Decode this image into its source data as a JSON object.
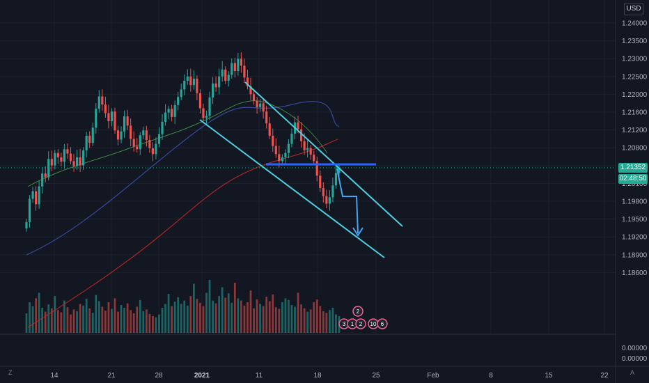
{
  "header": {
    "currency": "USD"
  },
  "price_panel": {
    "last_price": "1.21352",
    "countdown": "02:48:50",
    "indicator_ticks": [
      "0.00000",
      "0.00000"
    ]
  },
  "corner_labels": {
    "left": "Z",
    "right": "A"
  },
  "event_badges": {
    "top": "2",
    "a": "3",
    "b": "1",
    "c": "2",
    "d": "10",
    "e": "6"
  },
  "colors": {
    "background": "#131722",
    "up_candle": "#26a69a",
    "down_candle": "#ef5350",
    "channel_lines": "#4dd0e1",
    "level_line": "#2962ff",
    "projection_arrow": "#42a5f5",
    "ma_fast": "#4caf50",
    "ma_mid": "#3f51b5",
    "ma_slow": "#c62828",
    "price_tag": "#22ab94"
  },
  "chart_data": {
    "type": "candlestick",
    "instrument_quote_currency": "USD",
    "y_axis": {
      "ticks": [
        "1.24000",
        "1.23500",
        "1.23000",
        "1.22500",
        "1.22000",
        "1.21600",
        "1.21200",
        "1.20800",
        "1.20400",
        "1.20100",
        "1.19800",
        "1.19500",
        "1.19200",
        "1.18900",
        "1.18600"
      ]
    },
    "x_axis": {
      "ticks": [
        {
          "label": "14",
          "bold": false
        },
        {
          "label": "21",
          "bold": false
        },
        {
          "label": "28",
          "bold": false
        },
        {
          "label": "2021",
          "bold": true
        },
        {
          "label": "11",
          "bold": false
        },
        {
          "label": "18",
          "bold": false
        },
        {
          "label": "25",
          "bold": false
        },
        {
          "label": "Feb",
          "bold": false
        },
        {
          "label": "8",
          "bold": false
        },
        {
          "label": "15",
          "bold": false
        },
        {
          "label": "22",
          "bold": false
        }
      ]
    },
    "last_price": 1.21352,
    "candles_close_trend": [
      1.2035,
      1.2078,
      1.2092,
      1.2068,
      1.2101,
      1.2125,
      1.2118,
      1.2152,
      1.214,
      1.2163,
      1.2155,
      1.2147,
      1.217,
      1.2162,
      1.2148,
      1.2139,
      1.2155,
      1.214,
      1.2168,
      1.2195,
      1.2182,
      1.221,
      1.2245,
      1.2268,
      1.2253,
      1.2237,
      1.2222,
      1.224,
      1.2205,
      1.2188,
      1.2203,
      1.2231,
      1.2214,
      1.2189,
      1.2175,
      1.217,
      1.2196,
      1.2205,
      1.2187,
      1.2172,
      1.2161,
      1.218,
      1.2198,
      1.2221,
      1.2238,
      1.2245,
      1.223,
      1.2252,
      1.2267,
      1.2281,
      1.2297,
      1.2305,
      1.2289,
      1.2301,
      1.2274,
      1.2246,
      1.2228,
      1.2232,
      1.2266,
      1.2292,
      1.2285,
      1.2305,
      1.2318,
      1.2297,
      1.2308,
      1.233,
      1.2315,
      1.2338,
      1.2325,
      1.2303,
      1.2287,
      1.2272,
      1.226,
      1.2248,
      1.2255,
      1.224,
      1.2218,
      1.2195,
      1.2176,
      1.2161,
      1.2148,
      1.2155,
      1.2163,
      1.218,
      1.2199,
      1.222,
      1.2207,
      1.2185,
      1.2168,
      1.2172,
      1.216,
      1.2148,
      1.2121,
      1.2098,
      1.2083,
      1.2069,
      1.2081,
      1.2103,
      1.2126,
      1.2135
    ],
    "volume_relative": [
      0.35,
      0.55,
      0.48,
      0.62,
      0.72,
      0.45,
      0.38,
      0.51,
      0.44,
      0.66,
      0.41,
      0.37,
      0.58,
      0.46,
      0.33,
      0.42,
      0.39,
      0.52,
      0.49,
      0.61,
      0.44,
      0.36,
      0.68,
      0.57,
      0.47,
      0.4,
      0.55,
      0.43,
      0.62,
      0.38,
      0.5,
      0.45,
      0.53,
      0.41,
      0.35,
      0.47,
      0.59,
      0.39,
      0.42,
      0.34,
      0.3,
      0.28,
      0.33,
      0.45,
      0.52,
      0.7,
      0.48,
      0.56,
      0.64,
      0.52,
      0.58,
      0.49,
      0.66,
      0.88,
      0.61,
      0.54,
      0.48,
      0.72,
      0.95,
      0.58,
      0.53,
      0.66,
      0.82,
      0.63,
      0.71,
      0.54,
      0.9,
      0.62,
      0.58,
      0.49,
      0.55,
      0.76,
      0.44,
      0.6,
      0.52,
      0.48,
      0.65,
      0.57,
      0.69,
      0.46,
      0.43,
      0.55,
      0.62,
      0.59,
      0.5,
      0.47,
      0.72,
      0.51,
      0.44,
      0.38,
      0.42,
      0.55,
      0.6,
      0.48,
      0.39,
      0.36,
      0.41,
      0.45,
      0.33,
      0.3
    ],
    "drawings": {
      "descending_channel_upper": [
        [
          1.229,
          0.35
        ],
        [
          1.2028,
          1.0
        ]
      ],
      "descending_channel_lower": [
        [
          1.2222,
          0.0
        ],
        [
          1.1975,
          1.0
        ]
      ],
      "support_level": 1.2138,
      "projected_move": "down"
    },
    "moving_averages": [
      "fast",
      "mid",
      "slow"
    ],
    "grid": true
  }
}
